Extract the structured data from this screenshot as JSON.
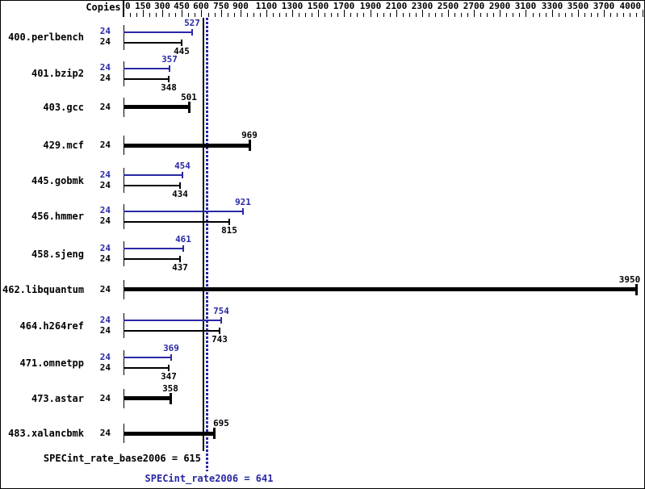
{
  "chart_data": {
    "type": "bar",
    "orientation": "horizontal",
    "copies_header": "Copies",
    "legend_position": "none",
    "x_axis": {
      "min": 0,
      "max": 4000,
      "tick_labels": [
        0,
        150,
        300,
        450,
        600,
        750,
        900,
        1100,
        1300,
        1500,
        1700,
        1900,
        2100,
        2300,
        2500,
        2700,
        2900,
        3100,
        3300,
        3500,
        3700,
        4000
      ],
      "minor_step": 50,
      "grid": false
    },
    "series_meta": [
      {
        "name": "peak",
        "color": "#2828a5",
        "style": "thin"
      },
      {
        "name": "base",
        "color": "#000000",
        "style": "thin"
      }
    ],
    "benchmarks": [
      {
        "name": "400.perlbench",
        "copies": 24,
        "peak": 527,
        "base": 445
      },
      {
        "name": "401.bzip2",
        "copies": 24,
        "peak": 357,
        "base": 348
      },
      {
        "name": "403.gcc",
        "copies": 24,
        "base": 501,
        "peak_equals_base": true
      },
      {
        "name": "429.mcf",
        "copies": 24,
        "base": 969,
        "peak_equals_base": true
      },
      {
        "name": "445.gobmk",
        "copies": 24,
        "peak": 454,
        "base": 434
      },
      {
        "name": "456.hmmer",
        "copies": 24,
        "peak": 921,
        "base": 815
      },
      {
        "name": "458.sjeng",
        "copies": 24,
        "peak": 461,
        "base": 437
      },
      {
        "name": "462.libquantum",
        "copies": 24,
        "base": 3950,
        "peak_equals_base": true,
        "label_dx": -8
      },
      {
        "name": "464.h264ref",
        "copies": 24,
        "peak": 754,
        "base": 743
      },
      {
        "name": "471.omnetpp",
        "copies": 24,
        "peak": 369,
        "base": 347
      },
      {
        "name": "473.astar",
        "copies": 24,
        "base": 358,
        "peak_equals_base": true
      },
      {
        "name": "483.xalancbmk",
        "copies": 24,
        "base": 695,
        "peak_equals_base": true,
        "label_dx": 9
      }
    ],
    "reference_lines": [
      {
        "label": "SPECint_rate_base2006 = 615",
        "value": 615,
        "color": "#000000",
        "style": "solid"
      },
      {
        "label": "SPECint_rate2006 = 641",
        "value": 641,
        "color": "#2828a5",
        "style": "dotted"
      }
    ],
    "colors": {
      "peak": "#2828a5",
      "base": "#000000",
      "background": "#ffffff"
    }
  }
}
